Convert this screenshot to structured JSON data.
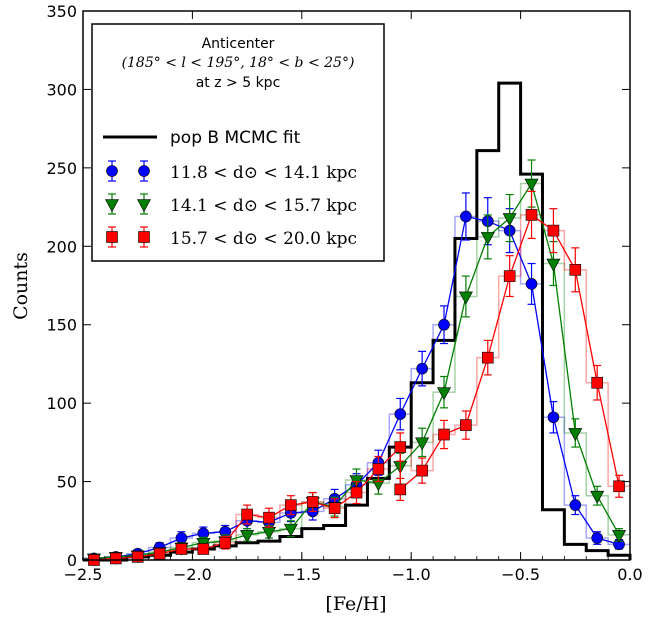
{
  "chart_data": {
    "type": "line",
    "title": "",
    "xlabel": "[Fe/H]",
    "ylabel": "Counts",
    "xlim": [
      -2.5,
      0.0
    ],
    "ylim": [
      0,
      350
    ],
    "xticks": [
      -2.5,
      -2.0,
      -1.5,
      -1.0,
      -0.5,
      0.0
    ],
    "xtick_labels": [
      "−2.5",
      "−2.0",
      "−1.5",
      "−1.0",
      "−0.5",
      "0.0"
    ],
    "yticks": [
      0,
      50,
      100,
      150,
      200,
      250,
      300,
      350
    ],
    "ytick_labels": [
      "0",
      "50",
      "100",
      "150",
      "200",
      "250",
      "300",
      "350"
    ],
    "grid": false,
    "legend_position": "top-left",
    "annotation": {
      "line1": "Anticenter",
      "line2": "(185° < l < 195°, 18° < b < 25°)",
      "line3": "at z > 5 kpc"
    },
    "histogram": {
      "name": "pop B MCMC fit",
      "color": "#000000",
      "edges": [
        -2.5,
        -2.4,
        -2.3,
        -2.2,
        -2.1,
        -2.0,
        -1.9,
        -1.8,
        -1.7,
        -1.6,
        -1.5,
        -1.4,
        -1.3,
        -1.2,
        -1.1,
        -1.0,
        -0.9,
        -0.8,
        -0.7,
        -0.6,
        -0.5,
        -0.4,
        -0.3,
        -0.2,
        -0.1,
        0.0
      ],
      "values": [
        0,
        0,
        2,
        3,
        5,
        7,
        9,
        11,
        12,
        15,
        20,
        22,
        35,
        52,
        72,
        113,
        140,
        205,
        261,
        304,
        246,
        32,
        10,
        6,
        3
      ]
    },
    "x": [
      -2.45,
      -2.35,
      -2.25,
      -2.15,
      -2.05,
      -1.95,
      -1.85,
      -1.75,
      -1.65,
      -1.55,
      -1.45,
      -1.35,
      -1.25,
      -1.15,
      -1.05,
      -0.95,
      -0.85,
      -0.75,
      -0.65,
      -0.55,
      -0.45,
      -0.35,
      -0.25,
      -0.15,
      -0.05
    ],
    "series": [
      {
        "name": "11.8 < d⊙ < 14.1 kpc",
        "color": "#0000ff",
        "marker": "circle",
        "values": [
          1,
          2,
          4,
          8,
          14,
          17,
          18,
          25,
          24,
          30,
          31,
          39,
          48,
          62,
          93,
          122,
          150,
          219,
          216,
          210,
          176,
          91,
          35,
          14,
          10
        ],
        "errors": [
          1.5,
          2,
          2.5,
          3,
          4,
          4,
          4,
          5,
          5,
          5.5,
          5.5,
          6,
          7,
          8,
          10,
          11,
          12,
          15,
          15,
          14,
          13,
          10,
          6,
          4,
          3
        ]
      },
      {
        "name": "14.1 < d⊙ < 15.7 kpc",
        "color": "#008000",
        "marker": "triangle-down",
        "values": [
          1,
          2,
          3,
          5,
          8,
          11,
          12,
          16,
          18,
          20,
          37,
          34,
          51,
          49,
          60,
          75,
          107,
          168,
          206,
          218,
          240,
          189,
          81,
          41,
          16
        ],
        "errors": [
          1.5,
          2,
          2,
          2.5,
          3,
          3.5,
          4,
          4,
          4,
          5,
          6,
          6,
          7,
          7,
          8,
          9,
          10,
          13,
          14,
          15,
          15,
          14,
          9,
          6,
          4
        ]
      },
      {
        "name": "15.7 < d⊙ < 20.0 kpc",
        "color": "#ff0000",
        "marker": "square",
        "values": [
          0,
          1,
          2,
          4,
          7,
          7,
          11,
          29,
          27,
          35,
          37,
          33,
          43,
          58,
          72,
          45,
          57,
          80,
          86,
          129,
          181,
          220,
          210,
          185,
          113,
          47
        ],
        "x": [
          -2.45,
          -2.35,
          -2.25,
          -2.15,
          -2.05,
          -1.95,
          -1.85,
          -1.75,
          -1.65,
          -1.55,
          -1.45,
          -1.35,
          -1.25,
          -1.15,
          -1.05,
          -1.05,
          -0.95,
          -0.85,
          -0.75,
          -0.65,
          -0.55,
          -0.45,
          -0.35,
          -0.25,
          -0.15,
          -0.05
        ],
        "errors": [
          1,
          1.5,
          2,
          2.5,
          3,
          3,
          4,
          6,
          6,
          6,
          6,
          6,
          7,
          8,
          9,
          7,
          8,
          9,
          9,
          11,
          13,
          15,
          14,
          14,
          11,
          7
        ]
      }
    ]
  }
}
